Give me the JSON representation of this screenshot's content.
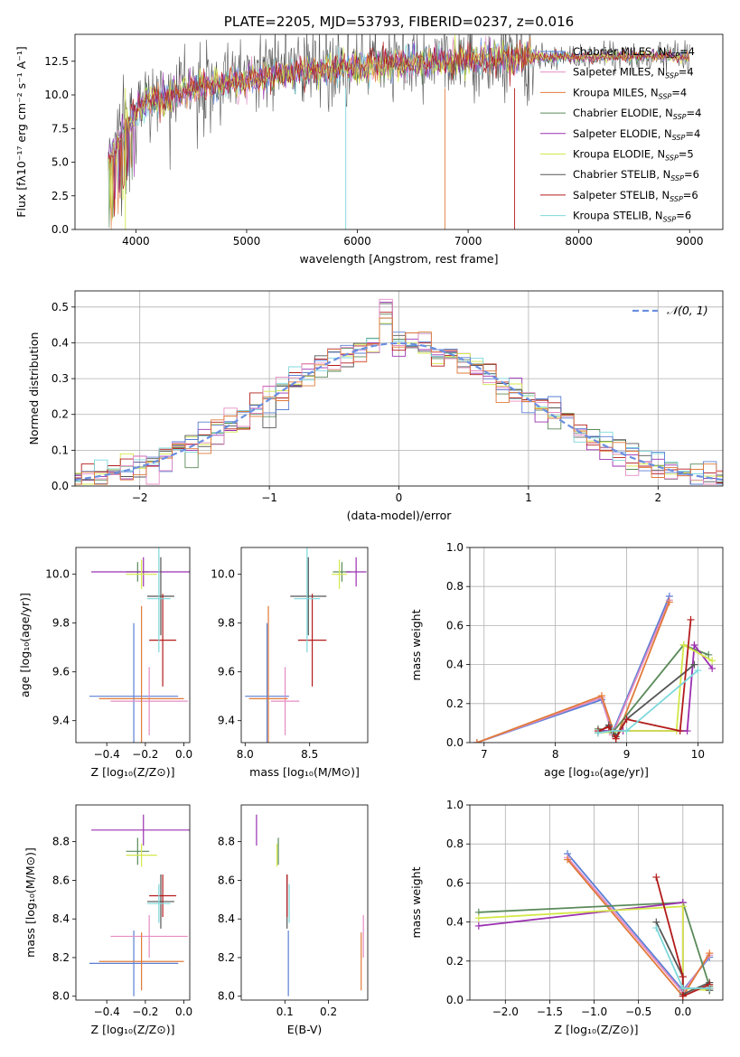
{
  "chart_data": [
    {
      "type": "line",
      "title": "PLATE=2205, MJD=53793, FIBERID=0237, z=0.016",
      "xlabel": "wavelength [Angstrom, rest frame]",
      "ylabel": "Flux [fλ10⁻¹⁷ erg cm⁻² s⁻¹ A⁻¹]",
      "xlim": [
        3450,
        9300
      ],
      "ylim": [
        0,
        14.5
      ],
      "xticks": [
        "4000",
        "5000",
        "6000",
        "7000",
        "8000",
        "9000"
      ],
      "yticks": [
        "0.0",
        "2.5",
        "5.0",
        "7.5",
        "10.0",
        "12.5"
      ],
      "legend_position": "top-right",
      "series": [
        {
          "name": "Chabrier MILES, N_SSP=4",
          "color": "#5b7fd4"
        },
        {
          "name": "Salpeter MILES, N_SSP=4",
          "color": "#e58cc3"
        },
        {
          "name": "Kroupa MILES, N_SSP=4",
          "color": "#e07b39"
        },
        {
          "name": "Chabrier ELODIE, N_SSP=4",
          "color": "#5a8a5a"
        },
        {
          "name": "Salpeter ELODIE, N_SSP=4",
          "color": "#9b30b0"
        },
        {
          "name": "Kroupa ELODIE, N_SSP=5",
          "color": "#d4e84a"
        },
        {
          "name": "Chabrier STELIB, N_SSP=6",
          "color": "#555555"
        },
        {
          "name": "Salpeter STELIB, N_SSP=6",
          "color": "#b31b1b"
        },
        {
          "name": "Kroupa STELIB, N_SSP=6",
          "color": "#7dd8dc"
        }
      ],
      "continuum": {
        "x": [
          3750,
          3900,
          4000,
          4100,
          4300,
          4500,
          5000,
          5500,
          6000,
          6500,
          7000,
          7500,
          8000,
          8500,
          9000
        ],
        "y": [
          5.0,
          7.5,
          8.8,
          9.5,
          9.8,
          10.5,
          11.2,
          11.8,
          12.0,
          12.4,
          12.6,
          12.8,
          12.8,
          12.9,
          12.8
        ]
      }
    },
    {
      "type": "line",
      "xlabel": "(data-model)/error",
      "ylabel": "Normed distribution",
      "xlim": [
        -2.5,
        2.5
      ],
      "ylim": [
        0,
        0.545
      ],
      "xticks": [
        "−2",
        "−1",
        "0",
        "1",
        "2"
      ],
      "yticks": [
        "0.0",
        "0.1",
        "0.2",
        "0.3",
        "0.4",
        "0.5"
      ],
      "grid": true,
      "legend": [
        "𝒩(0, 1)"
      ],
      "legend_position": "top-right"
    },
    {
      "type": "scatter",
      "xlabel": "Z [log₁₀(Z/Z⊙)]",
      "ylabel": "age  [log₁₀(age/yr)]",
      "xlim": [
        -0.56,
        0.03
      ],
      "ylim": [
        9.31,
        10.11
      ],
      "xticks": [
        "−0.4",
        "−0.2",
        "0.0"
      ],
      "yticks": [
        "9.4",
        "9.6",
        "9.8",
        "10.0"
      ]
    },
    {
      "type": "scatter",
      "xlabel": "mass [log₁₀(M/M⊙)]",
      "xlim": [
        7.97,
        8.95
      ],
      "ylim": [
        9.31,
        10.11
      ],
      "xticks": [
        "8.0",
        "8.5"
      ],
      "yticks": [
        "9.4",
        "9.6",
        "9.8",
        "10.0"
      ]
    },
    {
      "type": "line",
      "xlabel": "age  [log₁₀(age/yr)]",
      "ylabel": "mass weight",
      "xlim": [
        6.8,
        10.35
      ],
      "ylim": [
        0,
        1
      ],
      "xticks": [
        "7",
        "8",
        "9",
        "10"
      ],
      "yticks": [
        "0.0",
        "0.2",
        "0.4",
        "0.6",
        "0.8",
        "1.0"
      ],
      "grid": true,
      "series": [
        {
          "color": "#5b7fd4",
          "x": [
            6.9,
            8.65,
            8.8,
            9.6
          ],
          "y": [
            0.0,
            0.22,
            0.05,
            0.75
          ]
        },
        {
          "color": "#e58cc3",
          "x": [
            6.9,
            8.65,
            8.8,
            9.6
          ],
          "y": [
            0.0,
            0.23,
            0.04,
            0.73
          ]
        },
        {
          "color": "#e07b39",
          "x": [
            6.9,
            8.65,
            8.85,
            9.6
          ],
          "y": [
            0.0,
            0.24,
            0.02,
            0.72
          ]
        },
        {
          "color": "#5a8a5a",
          "x": [
            8.6,
            8.8,
            9.8,
            10.15
          ],
          "y": [
            0.07,
            0.05,
            0.5,
            0.45
          ]
        },
        {
          "color": "#9b30b0",
          "x": [
            8.6,
            8.95,
            9.85,
            9.95,
            10.2
          ],
          "y": [
            0.06,
            0.06,
            0.06,
            0.5,
            0.38
          ]
        },
        {
          "color": "#d4e84a",
          "x": [
            8.6,
            9.0,
            9.7,
            9.8,
            10.2
          ],
          "y": [
            0.05,
            0.06,
            0.06,
            0.5,
            0.42
          ]
        },
        {
          "color": "#555555",
          "x": [
            8.6,
            8.75,
            8.85,
            9.0,
            9.95
          ],
          "y": [
            0.05,
            0.09,
            0.03,
            0.12,
            0.4
          ]
        },
        {
          "color": "#b31b1b",
          "x": [
            8.6,
            8.75,
            8.85,
            9.0,
            9.75,
            9.9
          ],
          "y": [
            0.06,
            0.08,
            0.02,
            0.12,
            0.06,
            0.63
          ]
        },
        {
          "color": "#7dd8dc",
          "x": [
            8.6,
            8.8,
            9.0,
            10.0
          ],
          "y": [
            0.05,
            0.06,
            0.06,
            0.37
          ]
        }
      ]
    },
    {
      "type": "scatter",
      "xlabel": "Z [log₁₀(Z/Z⊙)]",
      "ylabel": "mass [log₁₀(M/M⊙)]",
      "xlim": [
        -0.56,
        0.03
      ],
      "ylim": [
        7.98,
        8.99
      ],
      "xticks": [
        "−0.4",
        "−0.2",
        "0.0"
      ],
      "yticks": [
        "8.0",
        "8.2",
        "8.4",
        "8.6",
        "8.8"
      ]
    },
    {
      "type": "scatter",
      "xlabel": "E(B-V)",
      "xlim": [
        0.0,
        0.29
      ],
      "ylim": [
        7.98,
        8.99
      ],
      "xticks": [
        "0.1",
        "0.2"
      ],
      "yticks": [
        "8.0",
        "8.2",
        "8.4",
        "8.6",
        "8.8"
      ]
    },
    {
      "type": "line",
      "xlabel": "Z [log₁₀(Z/Z⊙)]",
      "ylabel": "mass weight",
      "xlim": [
        -2.4,
        0.45
      ],
      "ylim": [
        0,
        1
      ],
      "xticks": [
        "−2.0",
        "−1.5",
        "−1.0",
        "−0.5",
        "0.0"
      ],
      "yticks": [
        "0.0",
        "0.2",
        "0.4",
        "0.6",
        "0.8",
        "1.0"
      ],
      "grid": true,
      "series": [
        {
          "color": "#5b7fd4",
          "x": [
            -1.3,
            0.0,
            0.3
          ],
          "y": [
            0.75,
            0.05,
            0.22
          ]
        },
        {
          "color": "#e58cc3",
          "x": [
            -1.3,
            0.0,
            0.3
          ],
          "y": [
            0.73,
            0.04,
            0.23
          ]
        },
        {
          "color": "#e07b39",
          "x": [
            -1.3,
            0.0,
            0.3
          ],
          "y": [
            0.72,
            0.02,
            0.24
          ]
        },
        {
          "color": "#5a8a5a",
          "x": [
            -2.3,
            0.0,
            0.3,
            0.3
          ],
          "y": [
            0.45,
            0.5,
            0.07,
            0.05
          ]
        },
        {
          "color": "#9b30b0",
          "x": [
            -2.3,
            0.0,
            0.0,
            0.3
          ],
          "y": [
            0.38,
            0.5,
            0.06,
            0.06
          ]
        },
        {
          "color": "#d4e84a",
          "x": [
            -2.3,
            0.0,
            0.0,
            0.3
          ],
          "y": [
            0.42,
            0.48,
            0.06,
            0.05
          ]
        },
        {
          "color": "#555555",
          "x": [
            -0.3,
            0.0,
            0.0,
            0.3,
            0.3
          ],
          "y": [
            0.4,
            0.12,
            0.03,
            0.09,
            0.05
          ]
        },
        {
          "color": "#b31b1b",
          "x": [
            -0.3,
            0.0,
            0.0,
            0.3,
            0.3
          ],
          "y": [
            0.63,
            0.12,
            0.02,
            0.08,
            0.06
          ]
        },
        {
          "color": "#7dd8dc",
          "x": [
            -0.3,
            0.0,
            0.3
          ],
          "y": [
            0.37,
            0.06,
            0.06
          ]
        }
      ]
    }
  ]
}
